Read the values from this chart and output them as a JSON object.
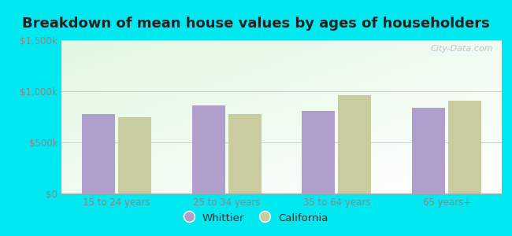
{
  "title": "Breakdown of mean house values by ages of householders",
  "categories": [
    "15 to 24 years",
    "25 to 34 years",
    "35 to 64 years",
    "65 years+"
  ],
  "whittier": [
    780000,
    860000,
    810000,
    835000
  ],
  "california": [
    745000,
    775000,
    960000,
    910000
  ],
  "whittier_color": "#b09fcc",
  "california_color": "#c8cc9f",
  "ylim": [
    0,
    1500000
  ],
  "yticks": [
    0,
    500000,
    1000000,
    1500000
  ],
  "ytick_labels": [
    "$0",
    "$500k",
    "$1,000k",
    "$1,500k"
  ],
  "background_outer": "#00e8f0",
  "grid_color": "#cccccc",
  "title_fontsize": 13,
  "title_color": "#222222",
  "tick_color": "#888888",
  "legend_labels": [
    "Whittier",
    "California"
  ],
  "watermark": "City-Data.com",
  "bar_width": 0.3,
  "bar_gap": 0.03
}
